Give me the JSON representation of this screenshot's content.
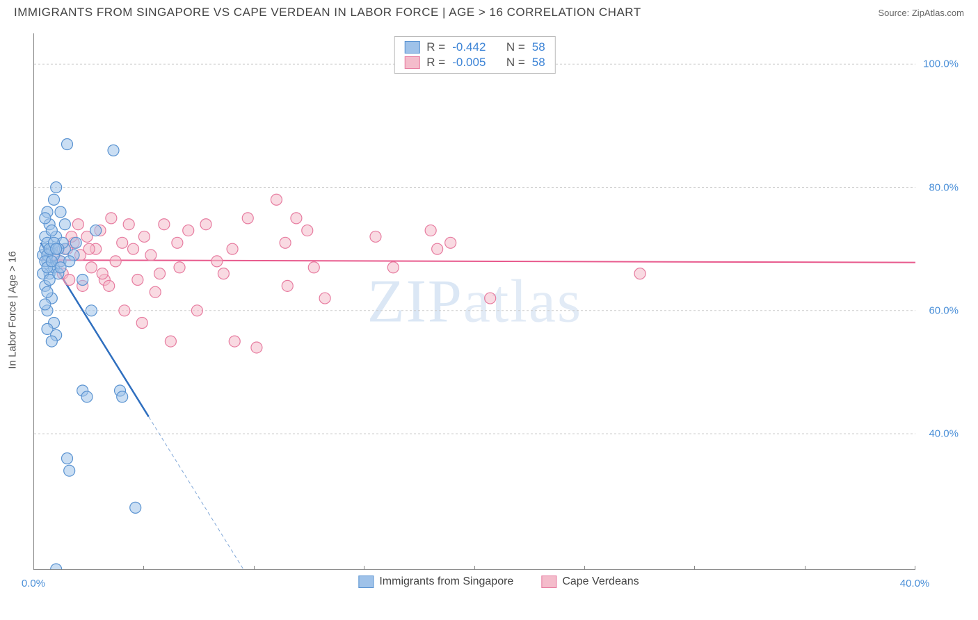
{
  "header": {
    "title": "IMMIGRANTS FROM SINGAPORE VS CAPE VERDEAN IN LABOR FORCE | AGE > 16 CORRELATION CHART",
    "source_prefix": "Source: ",
    "source_name": "ZipAtlas.com"
  },
  "watermark": {
    "part1": "ZIP",
    "part2": "atlas"
  },
  "axes": {
    "ylabel": "In Labor Force | Age > 16",
    "xlim": [
      0,
      40
    ],
    "ylim": [
      18,
      105
    ],
    "yticks": [
      {
        "v": 40,
        "label": "40.0%"
      },
      {
        "v": 60,
        "label": "60.0%"
      },
      {
        "v": 80,
        "label": "80.0%"
      },
      {
        "v": 100,
        "label": "100.0%"
      }
    ],
    "xticks_labeled": [
      {
        "v": 0,
        "label": "0.0%"
      },
      {
        "v": 40,
        "label": "40.0%"
      }
    ],
    "xticks_minor": [
      5,
      10,
      15,
      20,
      25,
      30,
      35
    ],
    "grid_color": "#cccccc",
    "axis_color": "#888888",
    "tick_label_color": "#4a8fd8",
    "tick_label_fontsize": 15
  },
  "series": {
    "blue": {
      "name": "Immigrants from Singapore",
      "fill": "#9fc2e9",
      "stroke": "#5a93d1",
      "line_color": "#2f6fbf",
      "marker_radius": 8,
      "marker_opacity": 0.55,
      "R": "-0.442",
      "N": "58",
      "trend": {
        "x1": 0.3,
        "y1": 71,
        "x2": 9.5,
        "y2": 18,
        "solid_until_x": 5.2
      },
      "points": [
        [
          0.4,
          69
        ],
        [
          0.5,
          70
        ],
        [
          0.6,
          68
        ],
        [
          0.5,
          72
        ],
        [
          0.7,
          66
        ],
        [
          0.8,
          70
        ],
        [
          0.6,
          71
        ],
        [
          0.7,
          74
        ],
        [
          0.9,
          67
        ],
        [
          0.5,
          64
        ],
        [
          0.8,
          62
        ],
        [
          0.6,
          60
        ],
        [
          0.9,
          58
        ],
        [
          0.6,
          57
        ],
        [
          1.0,
          56
        ],
        [
          0.8,
          55
        ],
        [
          1.2,
          68
        ],
        [
          1.4,
          70
        ],
        [
          1.0,
          72
        ],
        [
          1.8,
          69
        ],
        [
          1.2,
          76
        ],
        [
          0.6,
          76
        ],
        [
          0.9,
          78
        ],
        [
          1.0,
          80
        ],
        [
          2.8,
          73
        ],
        [
          3.6,
          86
        ],
        [
          1.5,
          87
        ],
        [
          1.9,
          71
        ],
        [
          2.2,
          65
        ],
        [
          2.6,
          60
        ],
        [
          2.2,
          47
        ],
        [
          2.4,
          46
        ],
        [
          3.9,
          47
        ],
        [
          4.0,
          46
        ],
        [
          1.5,
          36
        ],
        [
          1.6,
          34
        ],
        [
          4.6,
          28
        ],
        [
          1.0,
          18
        ],
        [
          0.4,
          66
        ],
        [
          0.6,
          63
        ],
        [
          0.5,
          61
        ],
        [
          0.9,
          69
        ],
        [
          1.1,
          66
        ],
        [
          1.3,
          71
        ],
        [
          0.8,
          73
        ],
        [
          0.5,
          75
        ],
        [
          0.6,
          69
        ],
        [
          0.7,
          70
        ],
        [
          1.4,
          74
        ],
        [
          0.5,
          68
        ],
        [
          0.9,
          71
        ],
        [
          1.6,
          68
        ],
        [
          0.7,
          65
        ],
        [
          1.1,
          70
        ],
        [
          0.6,
          67
        ],
        [
          0.8,
          68
        ],
        [
          1.0,
          70
        ],
        [
          1.2,
          67
        ]
      ]
    },
    "pink": {
      "name": "Cape Verdeans",
      "fill": "#f4bccb",
      "stroke": "#e77ca0",
      "line_color": "#e85a8d",
      "marker_radius": 8,
      "marker_opacity": 0.55,
      "R": "-0.005",
      "N": "58",
      "trend": {
        "x1": 0.3,
        "y1": 68.2,
        "x2": 40,
        "y2": 67.8
      },
      "points": [
        [
          0.9,
          69
        ],
        [
          1.2,
          68
        ],
        [
          1.5,
          70
        ],
        [
          1.3,
          66
        ],
        [
          1.8,
          71
        ],
        [
          2.0,
          74
        ],
        [
          2.2,
          64
        ],
        [
          2.4,
          72
        ],
        [
          2.6,
          67
        ],
        [
          2.8,
          70
        ],
        [
          3.0,
          73
        ],
        [
          3.2,
          65
        ],
        [
          3.5,
          75
        ],
        [
          3.7,
          68
        ],
        [
          4.0,
          71
        ],
        [
          4.3,
          74
        ],
        [
          4.7,
          65
        ],
        [
          5.0,
          72
        ],
        [
          5.3,
          69
        ],
        [
          5.5,
          63
        ],
        [
          5.9,
          74
        ],
        [
          6.2,
          55
        ],
        [
          6.6,
          67
        ],
        [
          7.0,
          73
        ],
        [
          7.4,
          60
        ],
        [
          7.8,
          74
        ],
        [
          8.3,
          68
        ],
        [
          8.6,
          66
        ],
        [
          9.0,
          70
        ],
        [
          9.1,
          55
        ],
        [
          9.7,
          75
        ],
        [
          10.1,
          54
        ],
        [
          11.0,
          78
        ],
        [
          11.4,
          71
        ],
        [
          11.5,
          64
        ],
        [
          11.9,
          75
        ],
        [
          12.4,
          73
        ],
        [
          12.7,
          67
        ],
        [
          13.2,
          62
        ],
        [
          15.5,
          72
        ],
        [
          16.3,
          67
        ],
        [
          18.0,
          73
        ],
        [
          18.3,
          70
        ],
        [
          18.9,
          71
        ],
        [
          20.7,
          62
        ],
        [
          27.5,
          66
        ],
        [
          2.1,
          69
        ],
        [
          3.1,
          66
        ],
        [
          4.5,
          70
        ],
        [
          5.7,
          66
        ],
        [
          6.5,
          71
        ],
        [
          1.7,
          72
        ],
        [
          2.5,
          70
        ],
        [
          3.4,
          64
        ],
        [
          4.1,
          60
        ],
        [
          4.9,
          58
        ],
        [
          1.1,
          70
        ],
        [
          1.6,
          65
        ]
      ]
    }
  },
  "stats_box": {
    "r_label": "R =",
    "n_label": "N ="
  },
  "bottom_legend": {
    "item1": "Immigrants from Singapore",
    "item2": "Cape Verdeans"
  }
}
